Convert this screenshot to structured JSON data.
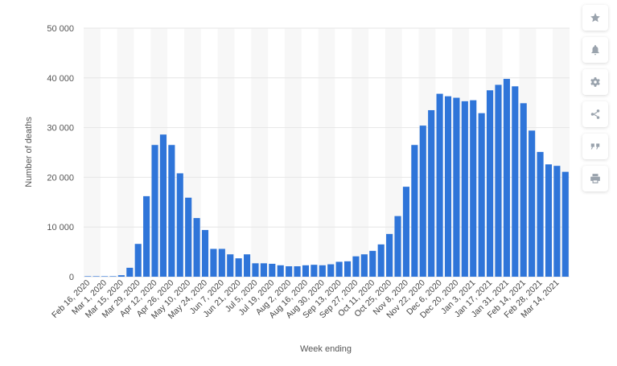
{
  "chart_data": {
    "type": "bar",
    "xlabel": "Week ending",
    "ylabel": "Number of deaths",
    "ylim": [
      0,
      50000
    ],
    "yticks": [
      0,
      10000,
      20000,
      30000,
      40000,
      50000
    ],
    "ytick_labels": [
      "0",
      "10 000",
      "20 000",
      "30 000",
      "40 000",
      "50 000"
    ],
    "categories": [
      "Feb 16, 2020",
      "Feb 23, 2020",
      "Mar 1, 2020",
      "Mar 8, 2020",
      "Mar 15, 2020",
      "Mar 22, 2020",
      "Mar 29, 2020",
      "Apr 5, 2020",
      "Apr 12, 2020",
      "Apr 19, 2020",
      "Apr 26, 2020",
      "May 3, 2020",
      "May 10, 2020",
      "May 17, 2020",
      "May 24, 2020",
      "May 31, 2020",
      "Jun 7, 2020",
      "Jun 14, 2020",
      "Jun 21, 2020",
      "Jun 28, 2020",
      "Jul 5, 2020",
      "Jul 12, 2020",
      "Jul 19, 2020",
      "Jul 26, 2020",
      "Aug 2, 2020",
      "Aug 9, 2020",
      "Aug 16, 2020",
      "Aug 23, 2020",
      "Aug 30, 2020",
      "Sep 6, 2020",
      "Sep 13, 2020",
      "Sep 20, 2020",
      "Sep 27, 2020",
      "Oct 4, 2020",
      "Oct 11, 2020",
      "Oct 18, 2020",
      "Oct 25, 2020",
      "Nov 1, 2020",
      "Nov 8, 2020",
      "Nov 15, 2020",
      "Nov 22, 2020",
      "Nov 29, 2020",
      "Dec 6, 2020",
      "Dec 13, 2020",
      "Dec 20, 2020",
      "Dec 27, 2020",
      "Jan 3, 2021",
      "Jan 10, 2021",
      "Jan 17, 2021",
      "Jan 24, 2021",
      "Jan 31, 2021",
      "Feb 7, 2021",
      "Feb 14, 2021",
      "Feb 21, 2021",
      "Feb 28, 2021",
      "Mar 7, 2021",
      "Mar 14, 2021",
      "Mar 21, 2021"
    ],
    "values": [
      0,
      0,
      10,
      100,
      300,
      1800,
      6600,
      16200,
      26500,
      28600,
      26500,
      20800,
      15900,
      11800,
      9400,
      5600,
      5600,
      4500,
      3700,
      4500,
      2700,
      2700,
      2600,
      2300,
      2100,
      2100,
      2300,
      2400,
      2300,
      2500,
      3000,
      3100,
      4100,
      4500,
      5200,
      6500,
      8600,
      12200,
      18100,
      26500,
      30400,
      33500,
      36800,
      36300,
      36000,
      35300,
      35500,
      32900,
      37500,
      38600,
      39800,
      38300,
      34900,
      29400,
      25100,
      22600,
      22300,
      21100
    ],
    "label_every": 2,
    "bar_color": "#2f75d9",
    "grid": true
  },
  "toolbar": {
    "buttons": [
      {
        "icon": "star-icon"
      },
      {
        "icon": "bell-icon"
      },
      {
        "icon": "gear-icon"
      },
      {
        "icon": "share-icon"
      },
      {
        "icon": "quote-icon"
      },
      {
        "icon": "print-icon"
      }
    ]
  }
}
